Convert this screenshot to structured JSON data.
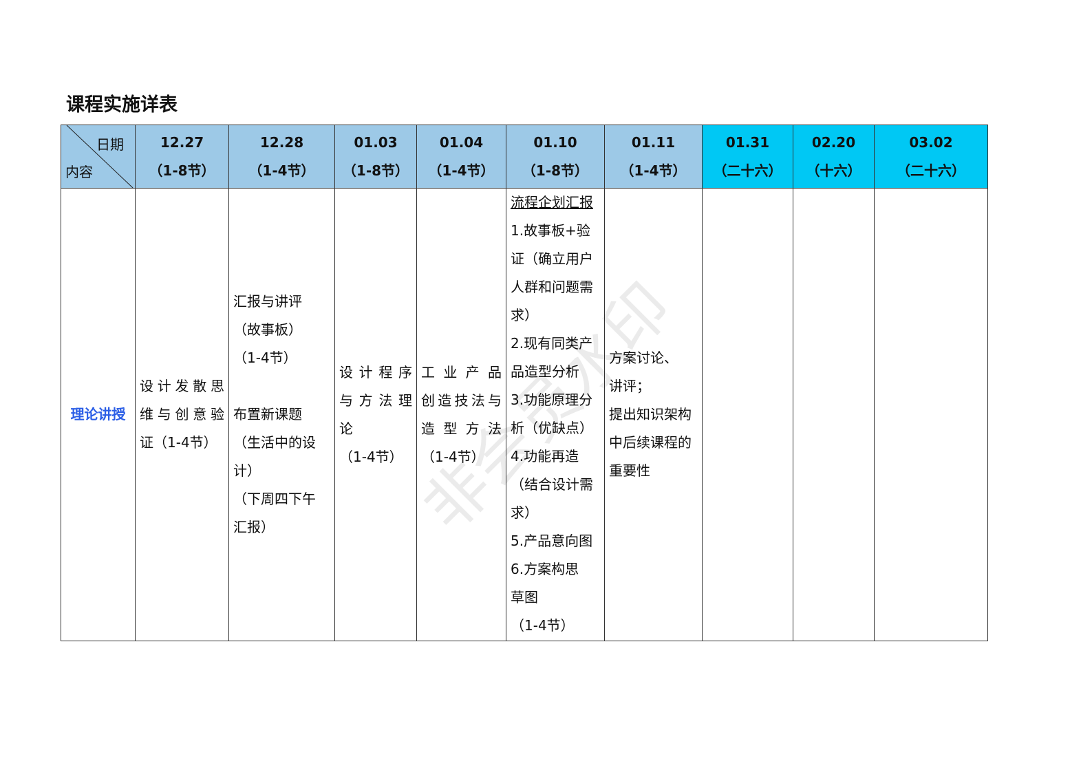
{
  "title": "课程实施详表",
  "header": {
    "corner_top": "日期",
    "corner_bottom": "内容",
    "columns": [
      {
        "date": "12.27",
        "sessions": "（1-8节）"
      },
      {
        "date": "12.28",
        "sessions": "（1-4节）"
      },
      {
        "date": "01.03",
        "sessions": "（1-8节）"
      },
      {
        "date": "01.04",
        "sessions": "（1-4节）"
      },
      {
        "date": "01.10",
        "sessions": "（1-8节）"
      },
      {
        "date": "01.11",
        "sessions": "（1-4节）"
      },
      {
        "date": "01.31",
        "sessions": "（二十六）"
      },
      {
        "date": "02.20",
        "sessions": "（十六）"
      },
      {
        "date": "03.02",
        "sessions": "（二十六）"
      }
    ]
  },
  "row": {
    "label": "理论讲授",
    "cells": [
      [
        "设计发散思",
        "维与创意验",
        "证（1-4节）"
      ],
      [
        "汇报与讲评",
        "（故事板）",
        "（1-4节）",
        "",
        "布置新课题",
        "（生活中的设",
        "计）",
        "（下周四下午",
        "汇报）"
      ],
      [
        "设计程序",
        "与方法理",
        "论",
        "（1-4节）"
      ],
      [
        "工业产品",
        "创造技法与",
        "造型方法",
        "（1-4节）"
      ],
      [
        "流程企划汇报",
        "1.故事板+验",
        "证（确立用户",
        "人群和问题需",
        "求）",
        "2.现有同类产",
        "品造型分析",
        "3.功能原理分",
        "析（优缺点）",
        "4.功能再造",
        "（结合设计需",
        "求）",
        "5.产品意向图",
        "6.方案构思",
        "草图",
        "（1-4节）"
      ],
      [
        "方案讨论、",
        "讲评；",
        "提出知识架构",
        "中后续课程的",
        "重要性"
      ],
      [],
      [],
      []
    ]
  },
  "watermark": "非会员水印",
  "colors": {
    "header_bg": "#9dc9e7",
    "header_highlight": "#00c8f4",
    "label_color": "#2b5ee6"
  }
}
